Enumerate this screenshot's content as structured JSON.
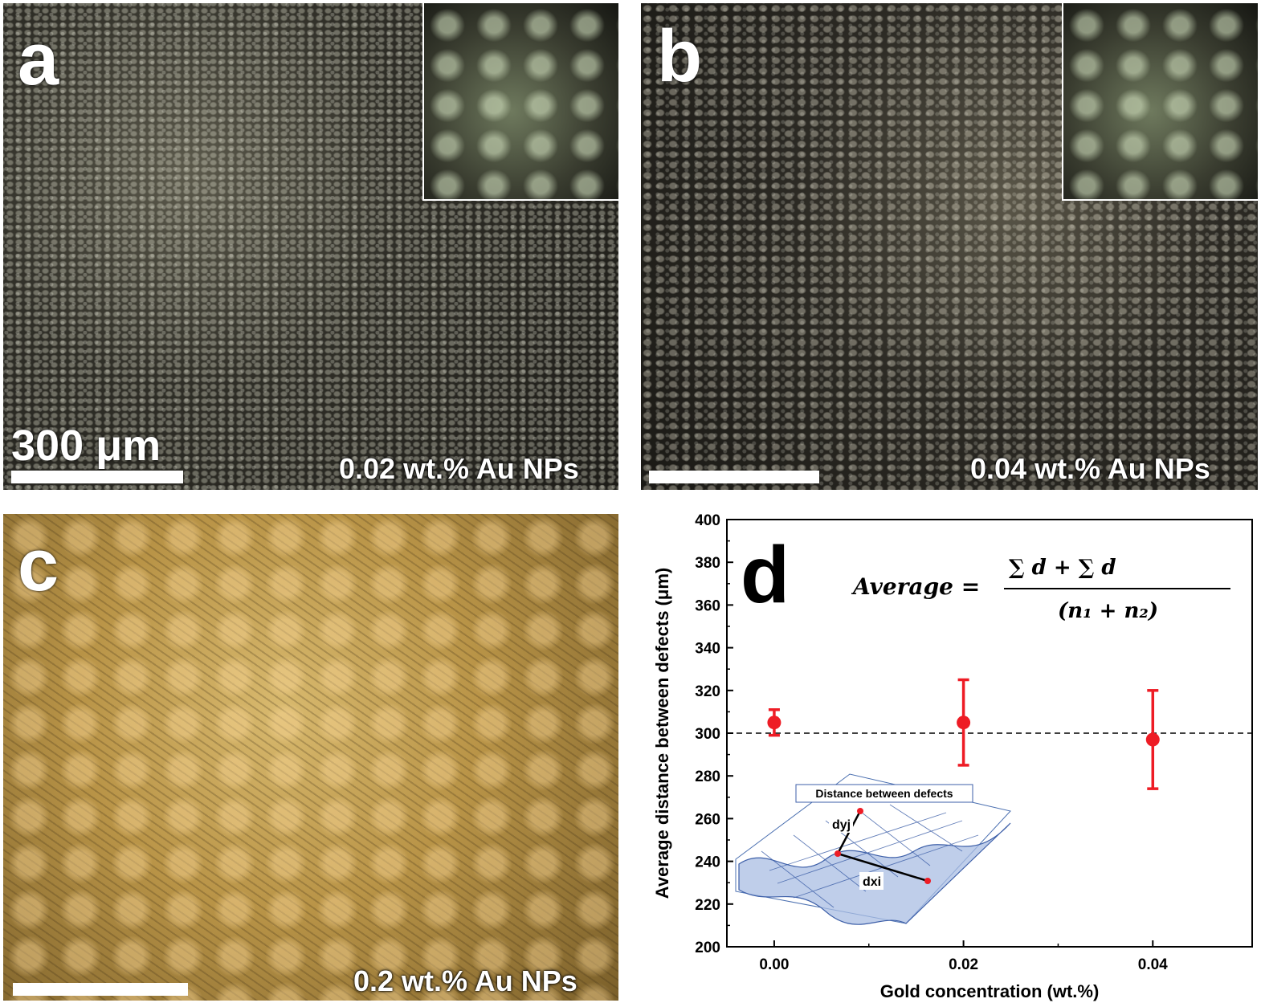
{
  "panels": {
    "a": {
      "letter": "a",
      "caption": "0.02 wt.% Au NPs",
      "scale_label": "300 μm"
    },
    "b": {
      "letter": "b",
      "caption": "0.04 wt.% Au NPs"
    },
    "c": {
      "letter": "c",
      "caption": "0.2 wt.% Au NPs"
    },
    "d": {
      "letter": "d"
    }
  },
  "formula": {
    "lhs": "Average =",
    "numerator": "∑ d + ∑ d",
    "denominator": "(n₁ + n₂)"
  },
  "inset_chart": {
    "title": "Distance between defects",
    "label_dy": "dyj",
    "label_dx": "dxi"
  },
  "chart_data": {
    "type": "scatter",
    "xlabel": "Gold concentration (wt.%)",
    "ylabel": "Average distance between defects (μm)",
    "xlim": [
      -0.005,
      0.0505
    ],
    "ylim": [
      200,
      400
    ],
    "xticks": [
      0.0,
      0.02,
      0.04
    ],
    "xtick_labels": [
      "0.00",
      "0.02",
      "0.04"
    ],
    "yticks": [
      200,
      220,
      240,
      260,
      280,
      300,
      320,
      340,
      360,
      380,
      400
    ],
    "reference_line": 300,
    "points": [
      {
        "x": 0.0,
        "y": 305,
        "err_low": 299,
        "err_high": 311
      },
      {
        "x": 0.02,
        "y": 305,
        "err_low": 285,
        "err_high": 325
      },
      {
        "x": 0.04,
        "y": 297,
        "err_low": 274,
        "err_high": 320
      }
    ],
    "marker_color": "#ee1c25"
  }
}
